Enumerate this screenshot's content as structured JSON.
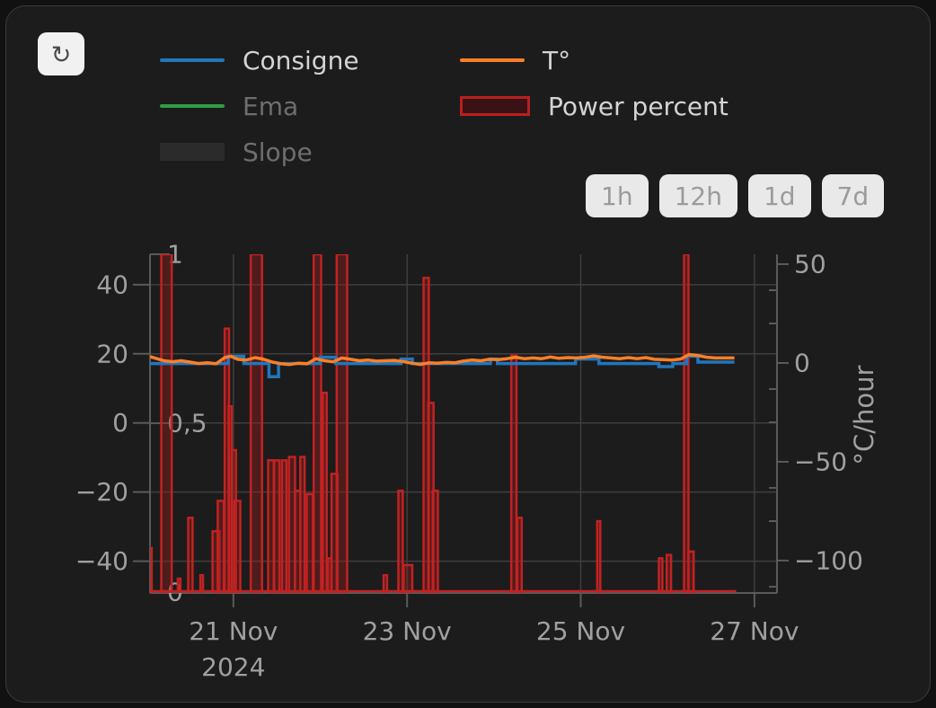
{
  "toolbar": {
    "refresh_icon": "↻"
  },
  "legend": {
    "columns": [
      [
        {
          "label": "Consigne",
          "color": "#2176bd",
          "swatch": "line",
          "enabled": true
        },
        {
          "label": "Ema",
          "color": "#2e9e44",
          "swatch": "line",
          "enabled": false
        },
        {
          "label": "Slope",
          "color": "#2b2b2b",
          "swatch": "box",
          "enabled": false
        }
      ],
      [
        {
          "label": "T°",
          "color": "#f97f28",
          "swatch": "line",
          "enabled": true
        },
        {
          "label": "Power percent",
          "color": "#b92020",
          "fill": "#3a1215",
          "swatch": "bar",
          "enabled": true
        }
      ]
    ]
  },
  "range_buttons": [
    {
      "label": "1h"
    },
    {
      "label": "12h"
    },
    {
      "label": "1d"
    },
    {
      "label": "7d"
    }
  ],
  "chart_data": {
    "type": "mixed",
    "x_unit": "days since 2024-11-20 00:00",
    "x_range": [
      0.04,
      7.26
    ],
    "x_ticks": [
      {
        "t": 1,
        "label": "21 Nov",
        "sub": "2024"
      },
      {
        "t": 3,
        "label": "23 Nov"
      },
      {
        "t": 5,
        "label": "25 Nov"
      },
      {
        "t": 7,
        "label": "27 Nov"
      }
    ],
    "axes": {
      "temp_left": {
        "range": [
          -49.2,
          48.8
        ],
        "ticks": [
          40,
          20,
          0,
          -20,
          -40
        ]
      },
      "power_inner": {
        "range": [
          0,
          1
        ],
        "ticks": [
          1,
          0.5,
          0
        ],
        "tick_labels": [
          "1",
          "0,5",
          "0"
        ]
      },
      "rate_right": {
        "range": [
          -116.4,
          55
        ],
        "ticks": [
          50,
          0,
          -50,
          -100
        ],
        "title": "°C/hour"
      }
    },
    "grid": {
      "color": "#3f3f3f",
      "axis_color": "#5a5a5a",
      "text_color": "#a0a0a0"
    },
    "series": {
      "consigne": {
        "name": "Consigne",
        "type": "step",
        "axis": "temp_left",
        "color": "#2176bd",
        "points": [
          [
            0.04,
            17.2
          ],
          [
            0.94,
            19.3
          ],
          [
            1.12,
            17.2
          ],
          [
            1.41,
            13.4
          ],
          [
            1.52,
            17.2
          ],
          [
            2.0,
            19.0
          ],
          [
            2.18,
            17.2
          ],
          [
            2.93,
            18.5
          ],
          [
            3.06,
            17.2
          ],
          [
            3.96,
            18.5
          ],
          [
            4.04,
            17.2
          ],
          [
            4.94,
            18.5
          ],
          [
            5.21,
            17.2
          ],
          [
            5.9,
            16.3
          ],
          [
            6.06,
            17.2
          ],
          [
            6.22,
            19.3
          ],
          [
            6.35,
            17.6
          ],
          [
            6.77,
            17.6
          ]
        ]
      },
      "temperature": {
        "name": "T°",
        "type": "line",
        "axis": "temp_left",
        "color": "#f97f28",
        "points": [
          [
            0.04,
            19.2
          ],
          [
            0.12,
            18.6
          ],
          [
            0.2,
            18.0
          ],
          [
            0.3,
            17.7
          ],
          [
            0.4,
            18.0
          ],
          [
            0.5,
            17.6
          ],
          [
            0.6,
            17.2
          ],
          [
            0.7,
            17.4
          ],
          [
            0.8,
            17.1
          ],
          [
            0.9,
            18.9
          ],
          [
            0.97,
            19.3
          ],
          [
            1.05,
            18.4
          ],
          [
            1.15,
            18.2
          ],
          [
            1.25,
            18.9
          ],
          [
            1.35,
            18.4
          ],
          [
            1.45,
            17.6
          ],
          [
            1.55,
            17.1
          ],
          [
            1.65,
            16.9
          ],
          [
            1.75,
            17.3
          ],
          [
            1.85,
            17.1
          ],
          [
            1.95,
            18.6
          ],
          [
            2.05,
            18.0
          ],
          [
            2.15,
            17.7
          ],
          [
            2.25,
            18.8
          ],
          [
            2.35,
            18.4
          ],
          [
            2.45,
            18.0
          ],
          [
            2.55,
            18.2
          ],
          [
            2.65,
            17.9
          ],
          [
            2.75,
            18.0
          ],
          [
            2.85,
            18.1
          ],
          [
            2.95,
            17.8
          ],
          [
            3.05,
            17.3
          ],
          [
            3.15,
            16.9
          ],
          [
            3.25,
            17.4
          ],
          [
            3.35,
            17.3
          ],
          [
            3.45,
            17.5
          ],
          [
            3.55,
            17.4
          ],
          [
            3.65,
            17.9
          ],
          [
            3.75,
            18.2
          ],
          [
            3.85,
            18.0
          ],
          [
            3.95,
            18.4
          ],
          [
            4.05,
            18.3
          ],
          [
            4.15,
            18.6
          ],
          [
            4.25,
            19.0
          ],
          [
            4.35,
            18.6
          ],
          [
            4.45,
            18.8
          ],
          [
            4.55,
            18.6
          ],
          [
            4.65,
            19.1
          ],
          [
            4.75,
            18.7
          ],
          [
            4.85,
            18.9
          ],
          [
            4.95,
            18.8
          ],
          [
            5.05,
            19.0
          ],
          [
            5.15,
            19.4
          ],
          [
            5.25,
            19.0
          ],
          [
            5.35,
            18.8
          ],
          [
            5.45,
            18.6
          ],
          [
            5.55,
            18.9
          ],
          [
            5.65,
            18.6
          ],
          [
            5.75,
            18.9
          ],
          [
            5.85,
            18.4
          ],
          [
            5.95,
            18.3
          ],
          [
            6.05,
            18.2
          ],
          [
            6.15,
            18.5
          ],
          [
            6.25,
            19.8
          ],
          [
            6.35,
            19.5
          ],
          [
            6.45,
            19.0
          ],
          [
            6.55,
            18.8
          ],
          [
            6.65,
            18.8
          ],
          [
            6.77,
            18.8
          ]
        ]
      },
      "ema": {
        "name": "Ema",
        "type": "line",
        "axis": "temp_left",
        "color": "#2e9e44",
        "disabled": true,
        "points": []
      },
      "slope": {
        "name": "Slope",
        "type": "area",
        "axis": "rate_right",
        "color": "#2b2b2b",
        "disabled": true,
        "points": []
      },
      "power": {
        "name": "Power percent",
        "type": "bars",
        "axis": "power_inner",
        "stroke": "#c22222",
        "fill": "rgba(158,28,30,0.38)",
        "baseline_end": 6.79,
        "bars": [
          [
            0.02,
            0.04,
            0.13
          ],
          [
            0.17,
            0.12,
            1.0
          ],
          [
            0.36,
            0.03,
            0.04
          ],
          [
            0.48,
            0.05,
            0.22
          ],
          [
            0.62,
            0.03,
            0.05
          ],
          [
            0.76,
            0.08,
            0.18
          ],
          [
            0.82,
            0.07,
            0.27
          ],
          [
            0.9,
            0.05,
            0.78
          ],
          [
            0.945,
            0.035,
            0.55
          ],
          [
            0.98,
            0.05,
            0.42
          ],
          [
            1.01,
            0.07,
            0.27
          ],
          [
            1.2,
            0.13,
            1.0
          ],
          [
            1.4,
            0.065,
            0.39
          ],
          [
            1.47,
            0.06,
            0.39
          ],
          [
            1.56,
            0.05,
            0.39
          ],
          [
            1.64,
            0.07,
            0.4
          ],
          [
            1.71,
            0.06,
            0.3
          ],
          [
            1.77,
            0.05,
            0.4
          ],
          [
            1.845,
            0.07,
            0.29
          ],
          [
            1.925,
            0.085,
            1.0
          ],
          [
            2.03,
            0.045,
            0.59
          ],
          [
            2.09,
            0.04,
            0.1
          ],
          [
            2.13,
            0.07,
            0.35
          ],
          [
            2.19,
            0.12,
            1.0
          ],
          [
            2.73,
            0.04,
            0.05
          ],
          [
            2.9,
            0.05,
            0.3
          ],
          [
            2.96,
            0.1,
            0.08
          ],
          [
            3.19,
            0.06,
            0.93
          ],
          [
            3.245,
            0.06,
            0.56
          ],
          [
            3.295,
            0.06,
            0.3
          ],
          [
            4.2,
            0.06,
            0.7
          ],
          [
            4.27,
            0.05,
            0.22
          ],
          [
            5.19,
            0.035,
            0.21
          ],
          [
            5.9,
            0.04,
            0.1
          ],
          [
            5.99,
            0.05,
            0.11
          ],
          [
            6.19,
            0.05,
            1.0
          ],
          [
            6.24,
            0.06,
            0.12
          ]
        ]
      }
    }
  }
}
